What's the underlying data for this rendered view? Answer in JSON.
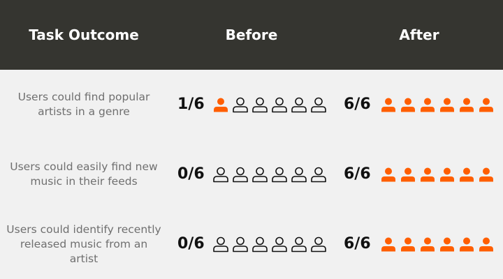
{
  "header": {
    "task_label": "Task Outcome",
    "before_label": "Before",
    "after_label": "After"
  },
  "colors": {
    "header_bg": "#353530",
    "filled": "#ff5e00",
    "outline": "#111111",
    "task_text": "#6f6f6f"
  },
  "icon": "person-icon",
  "chart_data": {
    "type": "table",
    "columns": [
      "Task Outcome",
      "Before",
      "After"
    ],
    "total_users": 6,
    "rows": [
      {
        "task": "Users could find popular artists in a genre",
        "before": 1,
        "after": 6,
        "before_label": "1/6",
        "after_label": "6/6"
      },
      {
        "task": "Users could easily find new music in their feeds",
        "before": 0,
        "after": 6,
        "before_label": "0/6",
        "after_label": "6/6"
      },
      {
        "task": "Users could identify recently released music from an artist",
        "before": 0,
        "after": 6,
        "before_label": "0/6",
        "after_label": "6/6"
      }
    ]
  }
}
